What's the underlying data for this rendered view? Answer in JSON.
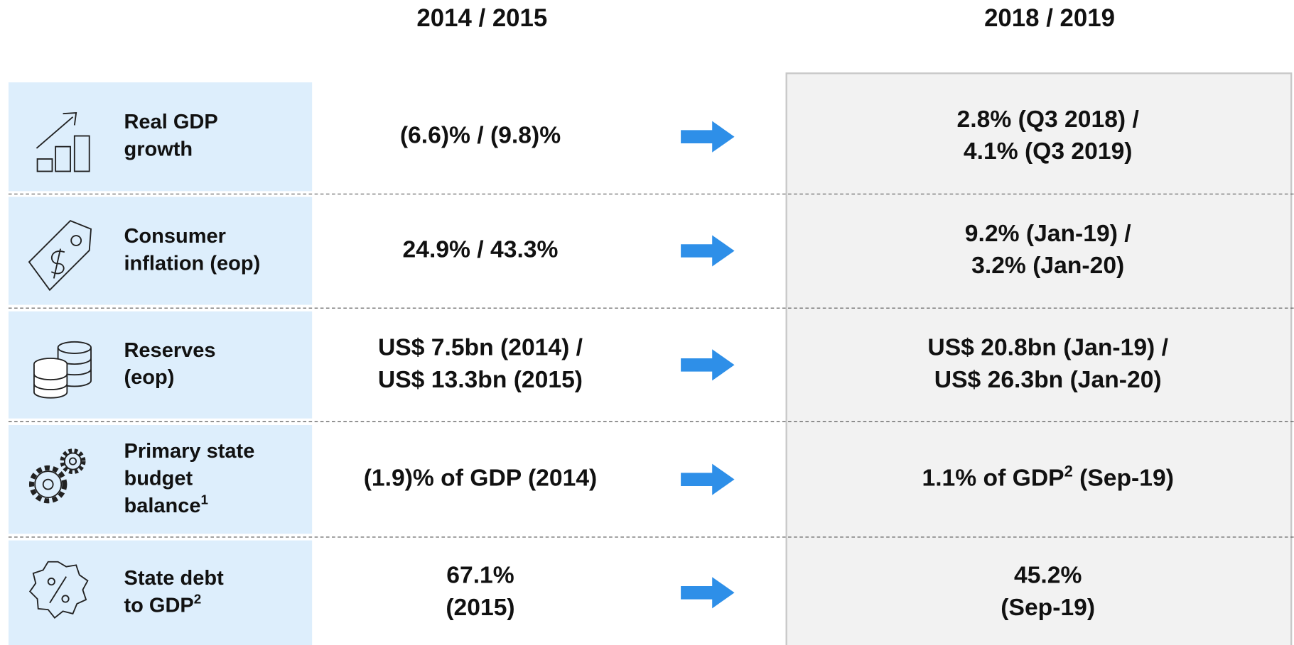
{
  "header": {
    "before": "2014 / 2015",
    "after": "2018 / 2019"
  },
  "rows": [
    {
      "label": [
        "Real GDP",
        "growth"
      ],
      "before": [
        "(6.6)% / (9.8)%"
      ],
      "after": [
        "2.8% (Q3 2018) /",
        "4.1% (Q3 2019)"
      ]
    },
    {
      "label": [
        "Consumer",
        "inflation (eop)"
      ],
      "before": [
        "24.9% / 43.3%"
      ],
      "after": [
        "9.2% (Jan-19) /",
        "3.2% (Jan-20)"
      ]
    },
    {
      "label": [
        "Reserves",
        "(eop)"
      ],
      "before": [
        "US$ 7.5bn (2014) /",
        "US$ 13.3bn (2015)"
      ],
      "after": [
        "US$ 20.8bn (Jan-19) /",
        "US$ 26.3bn (Jan-20)"
      ]
    },
    {
      "label": [
        "Primary state",
        "budget",
        {
          "text": "balance",
          "sup": "1"
        }
      ],
      "before": [
        "(1.9)% of GDP (2014)"
      ],
      "after": [
        {
          "text": "1.1% of GDP",
          "sup": "2",
          "tail": " (Sep-19)"
        }
      ]
    },
    {
      "label": [
        "State debt",
        {
          "text": "to GDP",
          "sup": "2"
        }
      ],
      "before": [
        "67.1%",
        "(2015)"
      ],
      "after": [
        "45.2%",
        "(Sep-19)"
      ]
    }
  ]
}
